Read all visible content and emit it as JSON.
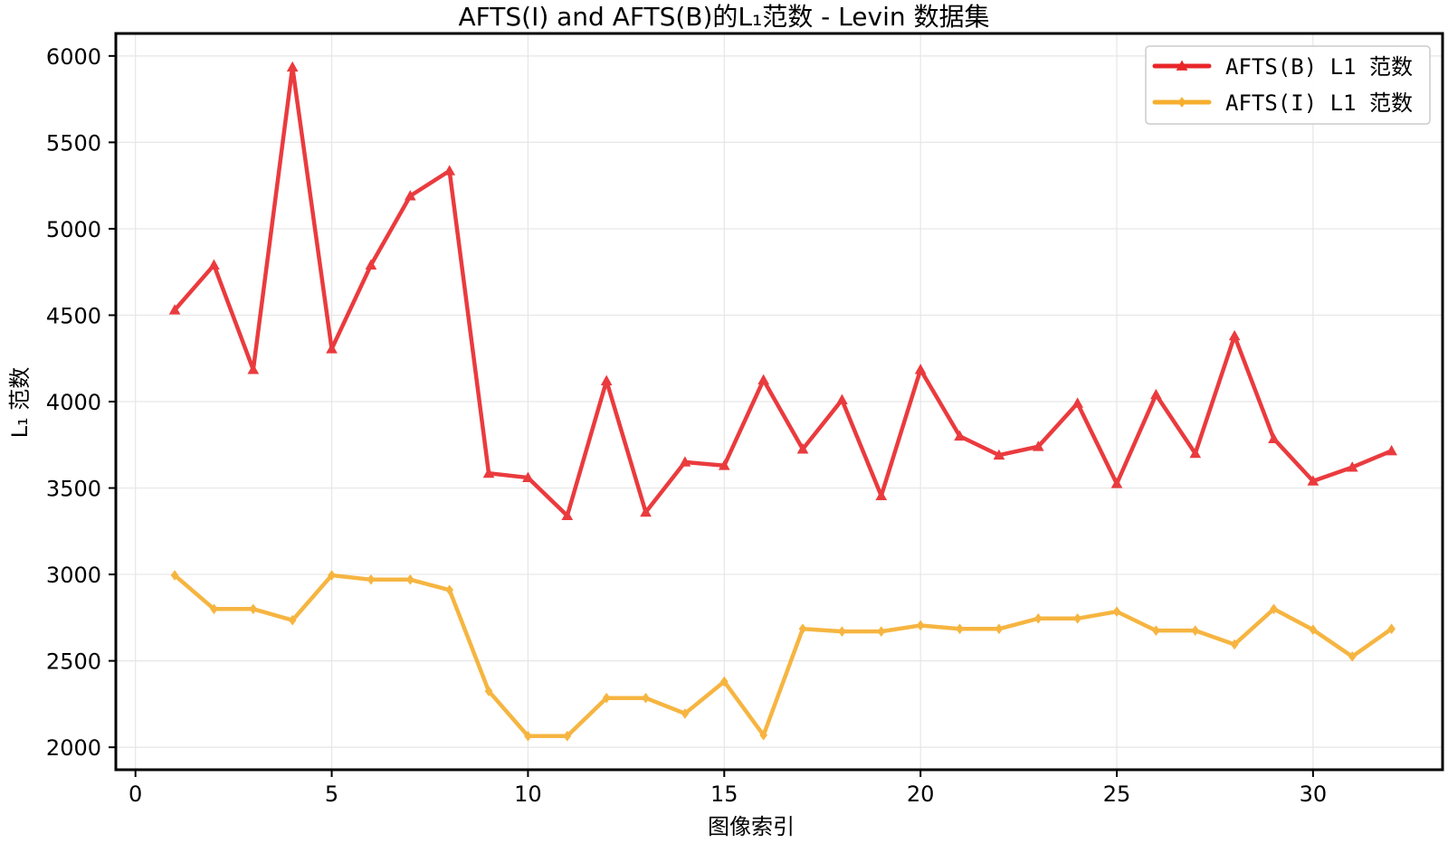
{
  "chart_data": {
    "type": "line",
    "title": "AFTS(I) and AFTS(B)的L₁范数 - Levin 数据集",
    "xlabel": "图像索引",
    "ylabel": "L₁ 范数",
    "xlim": [
      -0.5,
      33.3
    ],
    "ylim": [
      1870,
      6130
    ],
    "xticks": [
      0,
      5,
      10,
      15,
      20,
      25,
      30
    ],
    "yticks": [
      2000,
      2500,
      3000,
      3500,
      4000,
      4500,
      5000,
      5500,
      6000
    ],
    "grid": true,
    "legend_position": "top-right",
    "x": [
      1,
      2,
      3,
      4,
      5,
      6,
      7,
      8,
      9,
      10,
      11,
      12,
      13,
      14,
      15,
      16,
      17,
      18,
      19,
      20,
      21,
      22,
      23,
      24,
      25,
      26,
      27,
      28,
      29,
      30,
      31,
      32
    ],
    "series": [
      {
        "name": "AFTS(B) L1 范数",
        "color": "#e8262a",
        "marker": "triangle",
        "values": [
          4530,
          4790,
          4185,
          5935,
          4305,
          4790,
          5190,
          5335,
          3585,
          3560,
          3340,
          4120,
          3360,
          3650,
          3630,
          4125,
          3725,
          4010,
          3455,
          4185,
          3800,
          3690,
          3740,
          3990,
          3525,
          4040,
          3700,
          4380,
          3785,
          3540,
          3620,
          3715
        ]
      },
      {
        "name": "AFTS(I) L1 范数",
        "color": "#f6ae2d",
        "marker": "diamond",
        "values": [
          2995,
          2800,
          2800,
          2735,
          2995,
          2970,
          2970,
          2910,
          2325,
          2065,
          2065,
          2285,
          2285,
          2195,
          2380,
          2070,
          2685,
          2670,
          2670,
          2705,
          2685,
          2685,
          2745,
          2745,
          2785,
          2675,
          2675,
          2595,
          2800,
          2680,
          2525,
          2685
        ]
      }
    ]
  }
}
